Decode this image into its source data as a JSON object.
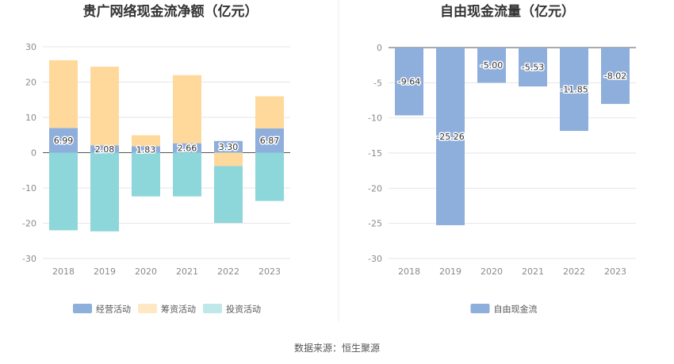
{
  "source": "数据来源：恒生聚源",
  "chart_data": [
    {
      "type": "bar",
      "stacked": true,
      "title": "贵广网络现金流净额（亿元）",
      "categories": [
        "2018",
        "2019",
        "2020",
        "2021",
        "2022",
        "2023"
      ],
      "ylim": [
        -30,
        30
      ],
      "yticks": [
        "30",
        "20",
        "10",
        "0",
        "-10",
        "-20",
        "-30"
      ],
      "grid": true,
      "legend": "bottom",
      "series": [
        {
          "name": "经营活动",
          "color": "#8eaedc",
          "values": [
            6.99,
            2.08,
            1.83,
            2.66,
            3.3,
            6.87
          ],
          "labels": [
            "6.99",
            "2.08",
            "1.83",
            "2.66",
            "3.30",
            "6.87"
          ]
        },
        {
          "name": "筹资活动",
          "color": "#ffd99b",
          "values": [
            19.2,
            22.3,
            3.1,
            19.3,
            -3.8,
            9.1
          ]
        },
        {
          "name": "投资活动",
          "color": "#8dd6d9",
          "values": [
            -22.0,
            -22.3,
            -12.4,
            -12.4,
            -16.1,
            -13.7
          ]
        }
      ]
    },
    {
      "type": "bar",
      "title": "自由现金流量（亿元）",
      "categories": [
        "2018",
        "2019",
        "2020",
        "2021",
        "2022",
        "2023"
      ],
      "ylim": [
        -30,
        0
      ],
      "yticks": [
        "0",
        "-5",
        "-10",
        "-15",
        "-20",
        "-25",
        "-30"
      ],
      "grid": true,
      "legend": "bottom",
      "series": [
        {
          "name": "自由现金流",
          "color": "#8eaedc",
          "values": [
            -9.64,
            -25.26,
            -5.0,
            -5.53,
            -11.85,
            -8.02
          ],
          "labels": [
            "-9.64",
            "-25.26",
            "-5.00",
            "-5.53",
            "-11.85",
            "-8.02"
          ]
        }
      ]
    }
  ]
}
